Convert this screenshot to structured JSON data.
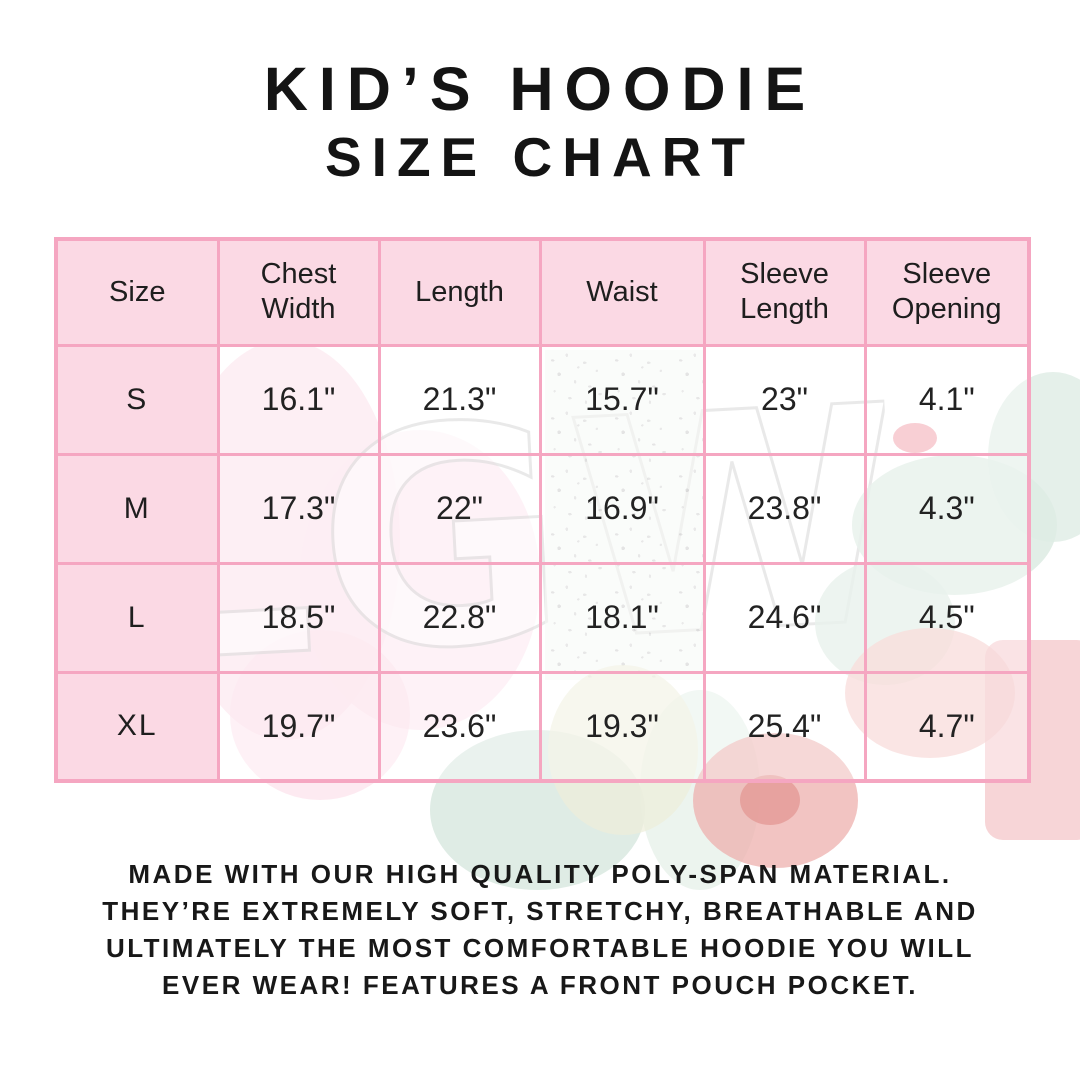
{
  "title": {
    "line1": "KID’S HOODIE",
    "line2": "SIZE CHART"
  },
  "chart_data": {
    "type": "table",
    "title": "KID’S HOODIE SIZE CHART",
    "columns": [
      "Size",
      "Chest Width",
      "Length",
      "Waist",
      "Sleeve Length",
      "Sleeve Opening"
    ],
    "rows": [
      [
        "S",
        "16.1\"",
        "21.3\"",
        "15.7\"",
        "23\"",
        "4.1\""
      ],
      [
        "M",
        "17.3\"",
        "22\"",
        "16.9\"",
        "23.8\"",
        "4.3\""
      ],
      [
        "L",
        "18.5\"",
        "22.8\"",
        "18.1\"",
        "24.6\"",
        "4.5\""
      ],
      [
        "XL",
        "19.7\"",
        "23.6\"",
        "19.3\"",
        "25.4\"",
        "4.7\""
      ]
    ]
  },
  "description": {
    "lines": [
      "MADE WITH OUR HIGH QUALITY POLY-SPAN MATERIAL.",
      "THEY’RE EXTREMELY SOFT, STRETCHY, BREATHABLE AND",
      "ULTIMATELY THE MOST COMFORTABLE HOODIE YOU WILL",
      "EVER WEAR! FEATURES A FRONT POUCH POCKET."
    ]
  },
  "watermark": {
    "text": "LGW"
  },
  "colors": {
    "table_border": "#F5A6C1",
    "header_fill": "#FBD9E4",
    "text": "#1A1A1A"
  }
}
